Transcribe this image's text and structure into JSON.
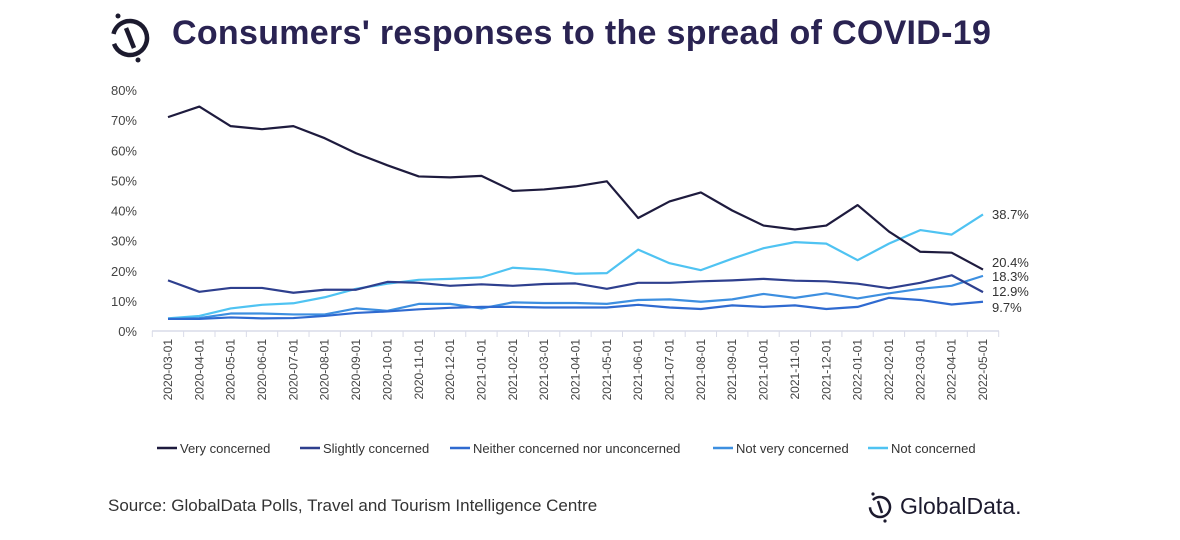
{
  "title": "Consumers' responses to the spread of COVID-19",
  "source": "Source: GlobalData Polls, Travel and Tourism Intelligence Centre",
  "brand": "GlobalData.",
  "chart_data": {
    "type": "line",
    "title": "Consumers' responses to the spread of COVID-19",
    "xlabel": "",
    "ylabel": "",
    "ylim": [
      0,
      80
    ],
    "yticks": [
      "0%",
      "10%",
      "20%",
      "30%",
      "40%",
      "50%",
      "60%",
      "70%",
      "80%"
    ],
    "grid": false,
    "legend": "bottom",
    "x": [
      "2020-03-01",
      "2020-04-01",
      "2020-05-01",
      "2020-06-01",
      "2020-07-01",
      "2020-08-01",
      "2020-09-01",
      "2020-10-01",
      "2020-11-01",
      "2020-12-01",
      "2021-01-01",
      "2021-02-01",
      "2021-03-01",
      "2021-04-01",
      "2021-05-01",
      "2021-06-01",
      "2021-07-01",
      "2021-08-01",
      "2021-09-01",
      "2021-10-01",
      "2021-11-01",
      "2021-12-01",
      "2022-01-01",
      "2022-02-01",
      "2022-03-01",
      "2022-04-01",
      "2022-05-01"
    ],
    "series": [
      {
        "name": "Very concerned",
        "color": "#1e1b3e",
        "end_label": "20.4%",
        "values": [
          71,
          74.5,
          68,
          67,
          68,
          64,
          59,
          55,
          51.3,
          51,
          51.5,
          46.5,
          47,
          48,
          49.7,
          37.5,
          43,
          46,
          40,
          35,
          33.7,
          35,
          41.8,
          33,
          26.3,
          26,
          20.4
        ]
      },
      {
        "name": "Slightly concerned",
        "color": "#2e3f8e",
        "end_label": "12.9%",
        "values": [
          16.8,
          13,
          14.3,
          14.3,
          12.7,
          13.7,
          13.7,
          16.3,
          16,
          15,
          15.5,
          15,
          15.6,
          15.8,
          14,
          16,
          16,
          16.5,
          16.8,
          17.3,
          16.7,
          16.5,
          15.7,
          14.2,
          16,
          18.5,
          12.9
        ]
      },
      {
        "name": "Neither concerned nor unconcerned",
        "color": "#2f6ad0",
        "end_label": "9.7%",
        "values": [
          4,
          4,
          4.5,
          4.2,
          4.3,
          5,
          6,
          6.5,
          7.2,
          7.7,
          8,
          8,
          7.8,
          7.8,
          7.8,
          8.7,
          7.8,
          7.3,
          8.5,
          8,
          8.5,
          7.3,
          8,
          11,
          10.3,
          8.8,
          9.7
        ]
      },
      {
        "name": "Not very concerned",
        "color": "#3d8fe0",
        "end_label": "18.3%",
        "values": [
          4,
          4.3,
          5.8,
          5.8,
          5.5,
          5.5,
          7.5,
          6.7,
          9,
          9,
          7.5,
          9.5,
          9.3,
          9.3,
          9,
          10.3,
          10.5,
          9.7,
          10.5,
          12.3,
          11,
          12.5,
          10.8,
          12.5,
          14,
          15,
          18.3
        ]
      },
      {
        "name": "Not concerned",
        "color": "#4fc3f2",
        "end_label": "38.7%",
        "values": [
          4.2,
          5,
          7.5,
          8.7,
          9.2,
          11.2,
          14,
          15.7,
          17,
          17.3,
          17.8,
          21,
          20.4,
          19,
          19.2,
          27,
          22.5,
          20.2,
          24,
          27.5,
          29.5,
          29,
          23.5,
          29,
          33.5,
          32,
          38.7
        ]
      }
    ]
  }
}
